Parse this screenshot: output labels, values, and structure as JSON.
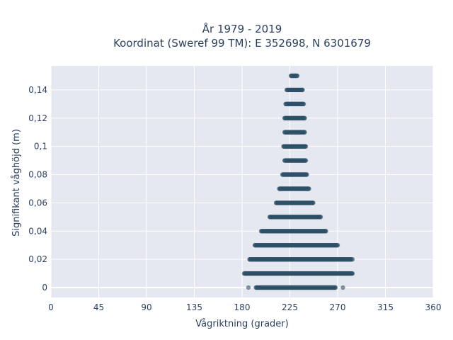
{
  "chart_data": {
    "type": "scatter",
    "title_line1": "År 1979 - 2019",
    "title_line2": "Koordinat (Sweref 99 TM): E 352698, N 6301679",
    "xlabel": "Vågriktning (grader)",
    "ylabel": "Signifikant våghöjd (m)",
    "xlim": [
      0,
      360
    ],
    "ylim": [
      -0.007,
      0.157
    ],
    "x_ticks": [
      0,
      45,
      90,
      135,
      180,
      225,
      270,
      315,
      360
    ],
    "x_tick_labels": [
      "0",
      "45",
      "90",
      "135",
      "180",
      "225",
      "270",
      "315",
      "360"
    ],
    "y_ticks": [
      0,
      0.02,
      0.04,
      0.06,
      0.08,
      0.1,
      0.12,
      0.14
    ],
    "y_tick_labels": [
      "0",
      "0,02",
      "0,04",
      "0,06",
      "0,08",
      "0,1",
      "0,12",
      "0,14"
    ],
    "grid": true,
    "plot_background": "#e5e8f0",
    "marker_color": "#2e5068",
    "series": [
      {
        "bands": [
          {
            "y": 0.0,
            "x_min": 193,
            "x_max": 268
          },
          {
            "y": 0.01,
            "x_min": 182,
            "x_max": 284
          },
          {
            "y": 0.02,
            "x_min": 187,
            "x_max": 283
          },
          {
            "y": 0.03,
            "x_min": 192,
            "x_max": 270
          },
          {
            "y": 0.04,
            "x_min": 198,
            "x_max": 259
          },
          {
            "y": 0.05,
            "x_min": 206,
            "x_max": 254
          },
          {
            "y": 0.06,
            "x_min": 212,
            "x_max": 247
          },
          {
            "y": 0.07,
            "x_min": 215,
            "x_max": 243
          },
          {
            "y": 0.08,
            "x_min": 218,
            "x_max": 241
          },
          {
            "y": 0.09,
            "x_min": 220,
            "x_max": 240
          },
          {
            "y": 0.1,
            "x_min": 219,
            "x_max": 240
          },
          {
            "y": 0.11,
            "x_min": 220,
            "x_max": 239
          },
          {
            "y": 0.12,
            "x_min": 220,
            "x_max": 239
          },
          {
            "y": 0.13,
            "x_min": 221,
            "x_max": 238
          },
          {
            "y": 0.14,
            "x_min": 222,
            "x_max": 237
          },
          {
            "y": 0.15,
            "x_min": 226,
            "x_max": 232
          }
        ],
        "outliers": [
          {
            "x": 284,
            "y": 0.02
          },
          {
            "x": 275,
            "y": 0.0
          },
          {
            "x": 186,
            "y": 0.0
          }
        ]
      }
    ]
  }
}
